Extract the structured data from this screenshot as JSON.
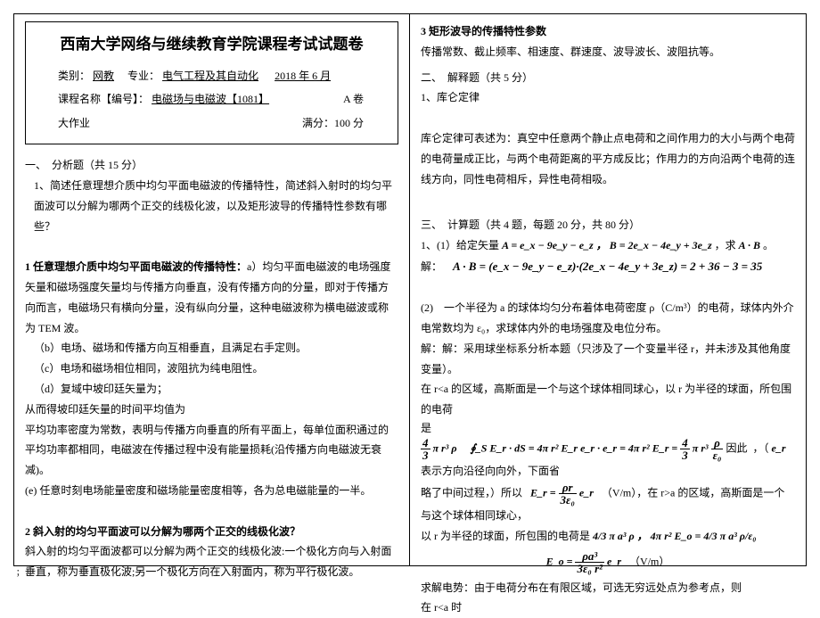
{
  "header": {
    "title": "西南大学网络与继续教育学院课程考试试题卷",
    "row1_cat": "类别：",
    "row1_cat_v": "网教",
    "row1_major": "专业：",
    "row1_major_v": "电气工程及其自动化",
    "row1_date": "2018 年 6 月",
    "row2_course": "课程名称【编号】：",
    "row2_course_v": "电磁场与电磁波【1081】",
    "row2_paper": "A 卷",
    "row3_left": "大作业",
    "row3_right": "满分：100 分"
  },
  "left": {
    "s1": "一、　分析题（共 15 分）",
    "q1": "1、简述任意理想介质中均匀平面电磁波的传播特性，简述斜入射时的均匀平面波可以分解为哪两个正交的线极化波，以及矩形波导的传播特性参数有哪些？",
    "h1": "1 任意理想介质中均匀平面电磁波的传播特性：",
    "h1a": "a）均匀平面电磁波的电场强度矢量和磁场强度矢量均与传播方向垂直，没有传播方向的分量，即对于传播方向而言，电磁场只有横向分量，没有纵向分量，这种电磁波称为横电磁波或称为 TEM 波。",
    "h1b": "（b）电场、磁场和传播方向互相垂直，且满足右手定则。",
    "h1c": "（c）电场和磁场相位相同，波阻抗为纯电阻性。",
    "h1d": "（d）复域中坡印廷矢量为；",
    "h1d2": "从而得坡印廷矢量的时间平均值为",
    "h1d3": "平均功率密度为常数，表明与传播方向垂直的所有平面上，每单位面积通过的平均功率都相同，电磁波在传播过程中没有能量损耗(沿传播方向电磁波无衰减)。",
    "h1e": "(e) 任意时刻电场能量密度和磁场能量密度相等，各为总电磁能量的一半。",
    "h2": "2 斜入射的均匀平面波可以分解为哪两个正交的线极化波？",
    "h2a": "斜入射的均匀平面波都可以分解为两个正交的线极化波:一个极化方向与入射面垂直，称为垂直极化波;另一个极化方向在入射面内，称为平行极化波。"
  },
  "right": {
    "h3": "3 矩形波导的传播特性参数",
    "h3a": "传播常数、截止频率、相速度、群速度、波导波长、波阻抗等。",
    "s2": "二、　解释题（共 5 分）",
    "s2_1": "1、库仑定律",
    "s2_1a": "库仑定律可表述为：真空中任意两个静止点电荷和之间作用力的大小与两个电荷的电荷量成正比，与两个电荷距离的平方成反比；作用力的方向沿两个电荷的连线方向，同性电荷相斥，异性电荷相吸。",
    "s3": "三、　计算题（共 4 题，每题 20 分，共 80 分）",
    "q1a": "1、(1）给定矢量 ",
    "q1b": "，求 ",
    "q1c": " 。",
    "ans": "解：",
    "q2": "(2)　一个半径为 a 的球体均匀分布着体电荷密度 ρ（C/m³）的电荷，球体内外介电常数均为 ε₀，求球体内外的电场强度及电位分布。",
    "a2a": "解：解：采用球坐标系分析本题（只涉及了一个变量半径 r，并未涉及其他角度变量）。",
    "a2b": "在 r<a 的区域，高斯面是一个与这个球体相同球心，以 r 为半径的球面，所包围的电荷",
    "a2c": "是",
    "a2d": "因此",
    "a2e": "表示方向沿径向向外，下面省",
    "a2f": "略了中间过程，）所以",
    "a2g": "（V/m），在 r>a 的区域，高斯面是一个与这个球体相同球心，",
    "a2h": "以 r 为半径的球面，所包围的电荷是 ",
    "a2i": "（V/m）",
    "a2j": "求解电势：由于电荷分布在有限区域，可选无穷远处点为参考点，则",
    "a2k": "在 r<a 时",
    "eqs": {
      "A": "A = e_x − 9e_y − e_z ，",
      "B": "B = 2e_x − 4e_y + 3e_z",
      "AB": "A · B",
      "dot": "A · B = (e_x − 9e_y − e_z)·(2e_x − 4e_y + 3e_z) = 2 + 36 − 3 = 35",
      "gauss_lhs_n": "4",
      "gauss_lhs_d": "3",
      "gauss_lhs_rest": "π r³ ρ",
      "gauss_mid": "∮_S E_r · dS = 4π r² E_r e_r · e_r = 4π r² E_r =",
      "gauss_rhs_rest": "π r³",
      "frac_rho_eps_n": "ρ",
      "frac_rho_eps_d": "ε₀",
      "er": "e_r",
      "Er_n": "ρr",
      "Er_d": "3ε₀",
      "Er_lhs": "E_r =",
      "charge": "4/3 π a³ ρ ，  4π r² E_o = 4/3 π a³ ρ/ε₀",
      "Eo_lhs": "E_o =",
      "Eo_n": "ρa³",
      "Eo_d": "3ε₀ r²",
      "Eo_er": " e_r"
    }
  },
  "foot": "； ."
}
